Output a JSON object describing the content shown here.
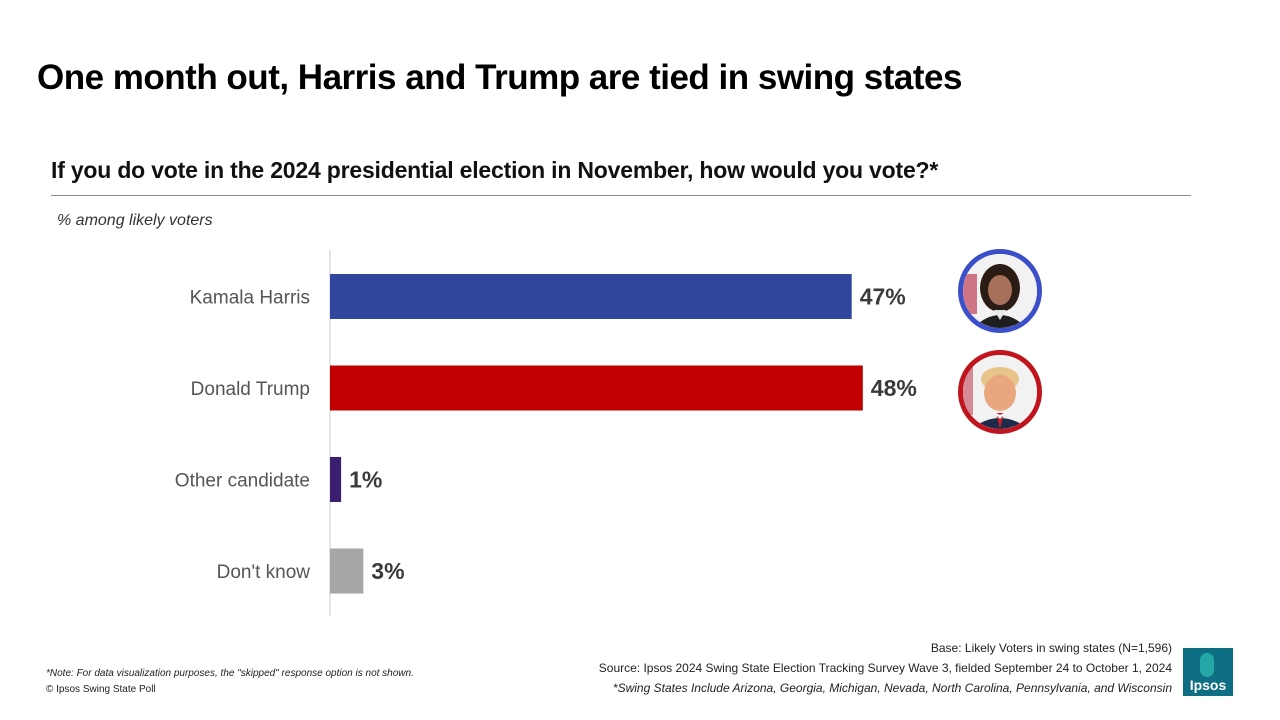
{
  "title": "One month out, Harris and Trump are tied in swing states",
  "question": "If you do vote in the 2024 presidential election in November, how would you vote?*",
  "subtitle": "% among likely voters",
  "chart_data": {
    "type": "bar",
    "orientation": "horizontal",
    "categories": [
      "Kamala Harris",
      "Donald Trump",
      "Other candidate",
      "Don't know"
    ],
    "values": [
      47,
      48,
      1,
      3
    ],
    "labels": [
      "47%",
      "48%",
      "1%",
      "3%"
    ],
    "colors": [
      "#30469e",
      "#c00000",
      "#3c1e6e",
      "#a6a6a6"
    ],
    "xlim": [
      0,
      100
    ],
    "unit": "%"
  },
  "footnotes": {
    "note": "*Note: For data visualization purposes, the \"skipped\" response option is not shown.",
    "copyright": "© Ipsos Swing State Poll",
    "base": "Base: Likely Voters in swing states (N=1,596)",
    "source": "Source: Ipsos 2024 Swing State Election Tracking Survey Wave 3, fielded September 24 to October 1, 2024",
    "swing_states": "*Swing States Include Arizona, Georgia, Michigan, Nevada, North Carolina, Pennsylvania, and Wisconsin"
  },
  "logo_text": "Ipsos"
}
